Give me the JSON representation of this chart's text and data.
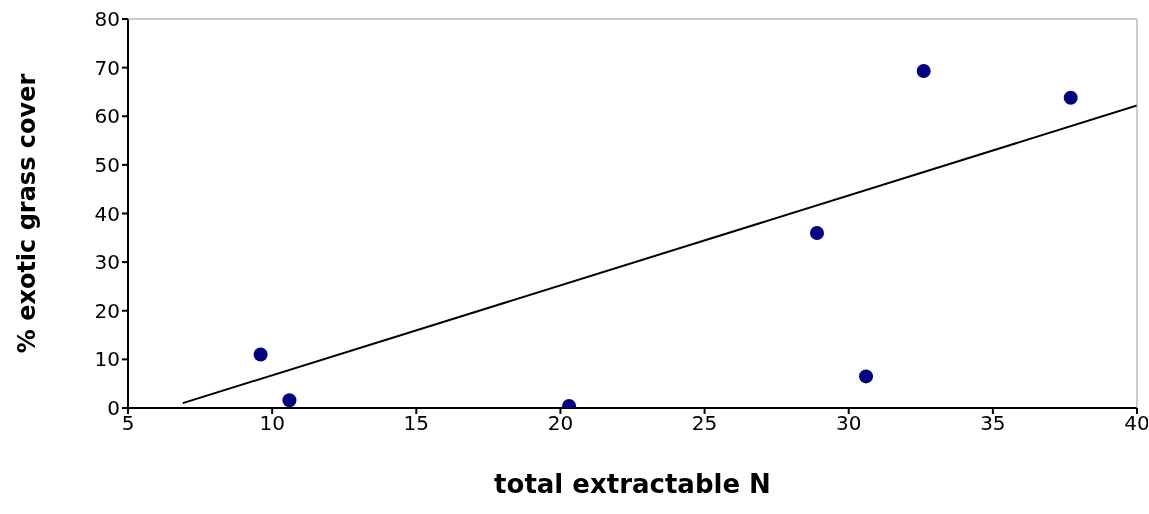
{
  "chart_data": {
    "type": "scatter",
    "xlabel": "total extractable N",
    "ylabel": "% exotic grass cover",
    "series": [
      {
        "marker": "circle",
        "color": "#000080",
        "x": [
          9.6,
          10.6,
          20.3,
          28.9,
          30.6,
          32.6,
          37.7
        ],
        "values": [
          11,
          1.6,
          0.4,
          36,
          6.5,
          69.3,
          63.8
        ]
      },
      {
        "type": "line",
        "color": "#000000",
        "x": [
          6.9,
          40
        ],
        "values": [
          1,
          62.2
        ]
      }
    ],
    "xlim": [
      5,
      40
    ],
    "xticks": [
      5,
      10,
      15,
      20,
      25,
      30,
      35,
      40
    ],
    "ylim": [
      0,
      80
    ],
    "yticks": [
      0,
      10,
      20,
      30,
      40,
      50,
      60,
      70,
      80
    ],
    "grid": false,
    "legend": false,
    "line_style": "solid"
  }
}
